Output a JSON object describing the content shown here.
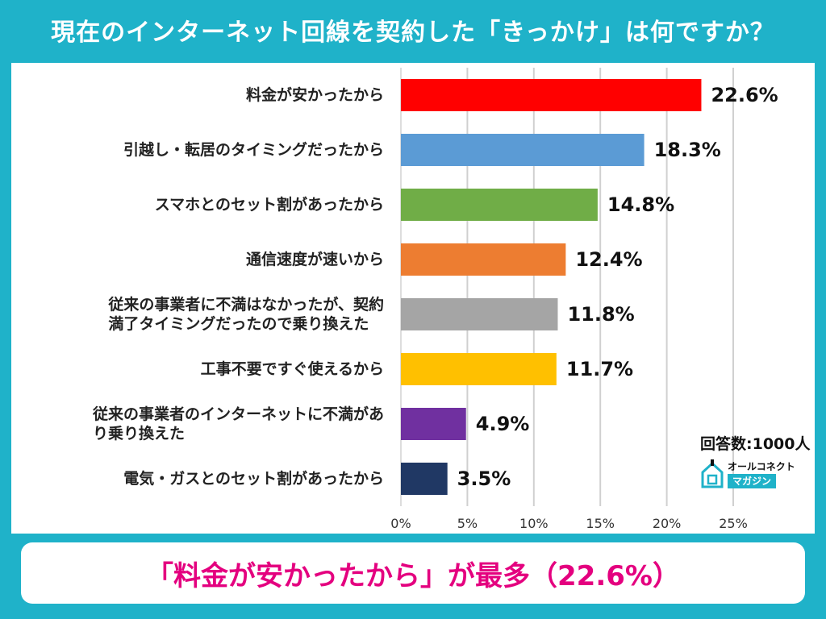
{
  "title": "現在のインターネット回線を契約した「きっかけ」は何ですか？",
  "respondents_note": "回答数:1000人",
  "brand": {
    "name": "オールコネクト",
    "sub": "マガジン",
    "icon": "house-logo-icon"
  },
  "conclusion": "「料金が安かったから」が最多（22.6%）",
  "colors": {
    "background": "#1fb2c9",
    "panel": "#ffffff",
    "conclusion_text": "#e4007f"
  },
  "chart_data": {
    "type": "bar",
    "orientation": "horizontal",
    "categories": [
      "料金が安かったから",
      "引越し・転居のタイミングだったから",
      "スマホとのセット割があったから",
      "通信速度が速いから",
      "従来の事業者に不満はなかったが、契約満了タイミングだったので乗り換えた",
      "工事不要ですぐ使えるから",
      "従来の事業者のインターネットに不満があり乗り換えた",
      "電気・ガスとのセット割があったから"
    ],
    "category_lines": [
      [
        "料金が安かったから"
      ],
      [
        "引越し・転居のタイミングだったから"
      ],
      [
        "スマホとのセット割があったから"
      ],
      [
        "通信速度が速いから"
      ],
      [
        "従来の事業者に不満はなかったが、契約",
        "満了タイミングだったので乗り換えた"
      ],
      [
        "工事不要ですぐ使えるから"
      ],
      [
        "従来の事業者のインターネットに不満があ",
        "り乗り換えた"
      ],
      [
        "電気・ガスとのセット割があったから"
      ]
    ],
    "values": [
      22.6,
      18.3,
      14.8,
      12.4,
      11.8,
      11.7,
      4.9,
      3.5
    ],
    "value_labels": [
      "22.6%",
      "18.3%",
      "14.8%",
      "12.4%",
      "11.8%",
      "11.7%",
      "4.9%",
      "3.5%"
    ],
    "bar_colors": [
      "#ff0000",
      "#5b9bd5",
      "#70ad47",
      "#ed7d31",
      "#a5a5a5",
      "#ffc000",
      "#7030a0",
      "#203864"
    ],
    "xlim": [
      0,
      25
    ],
    "ticks": [
      0,
      5,
      10,
      15,
      20,
      25
    ],
    "tick_labels": [
      "0%",
      "5%",
      "10%",
      "15%",
      "20%",
      "25%"
    ],
    "grid": true,
    "title": "",
    "xlabel": "",
    "ylabel": ""
  }
}
